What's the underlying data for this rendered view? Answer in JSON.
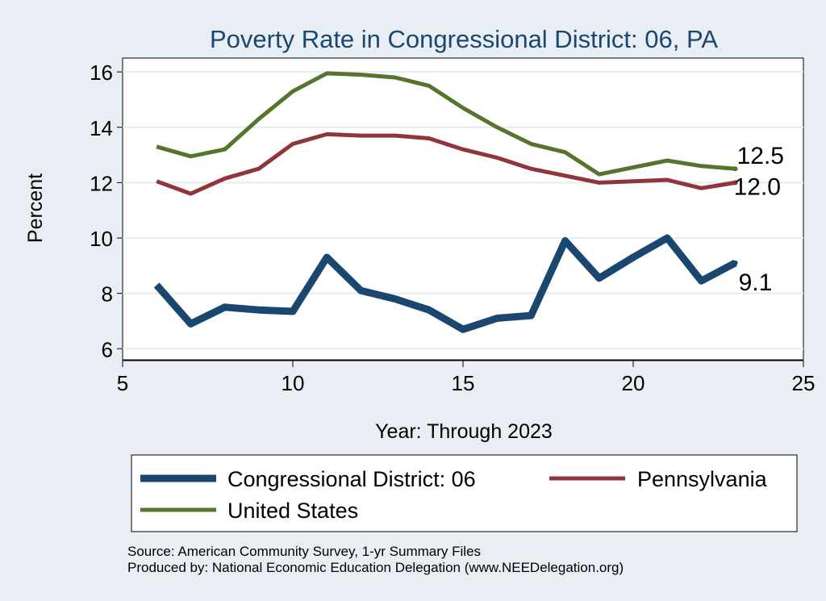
{
  "chart_data": {
    "type": "line",
    "title": "Poverty Rate in Congressional District:  06, PA",
    "xlabel": "Year: Through 2023",
    "ylabel": "Percent",
    "xlim": [
      5,
      25
    ],
    "ylim": [
      5.6,
      16.5
    ],
    "xticks": [
      5,
      10,
      15,
      20,
      25
    ],
    "yticks": [
      6,
      8,
      10,
      12,
      14,
      16
    ],
    "grid": true,
    "legend_position": "bottom",
    "series": [
      {
        "name": "Congressional District:  06",
        "color": "#1a476f",
        "x": [
          6,
          7,
          8,
          9,
          10,
          11,
          12,
          13,
          14,
          15,
          16,
          17,
          18,
          19,
          20,
          21,
          22,
          23
        ],
        "y": [
          8.3,
          6.9,
          7.5,
          7.4,
          7.35,
          9.3,
          8.1,
          7.8,
          7.4,
          6.7,
          7.1,
          7.2,
          9.9,
          8.55,
          9.3,
          10.0,
          8.45,
          9.1
        ],
        "end_label": "9.1"
      },
      {
        "name": "Pennsylvania",
        "color": "#90353b",
        "x": [
          6,
          7,
          8,
          9,
          10,
          11,
          12,
          13,
          14,
          15,
          16,
          17,
          18,
          19,
          20,
          21,
          22,
          23
        ],
        "y": [
          12.05,
          11.6,
          12.15,
          12.5,
          13.4,
          13.75,
          13.7,
          13.7,
          13.6,
          13.2,
          12.9,
          12.5,
          12.25,
          12.0,
          12.05,
          12.1,
          11.8,
          12.0
        ],
        "end_label": "12.0"
      },
      {
        "name": "United States",
        "color": "#55752f",
        "x": [
          6,
          7,
          8,
          9,
          10,
          11,
          12,
          13,
          14,
          15,
          16,
          17,
          18,
          19,
          20,
          21,
          22,
          23
        ],
        "y": [
          13.3,
          12.95,
          13.2,
          14.3,
          15.3,
          15.95,
          15.9,
          15.8,
          15.5,
          14.7,
          14.0,
          13.4,
          13.1,
          12.3,
          12.55,
          12.8,
          12.6,
          12.5
        ],
        "end_label": "12.5"
      }
    ]
  },
  "source_note": "Source: American Community Survey, 1-yr Summary Files",
  "producer_note": "Produced by: National Economic Education Delegation (www.NEEDelegation.org)"
}
